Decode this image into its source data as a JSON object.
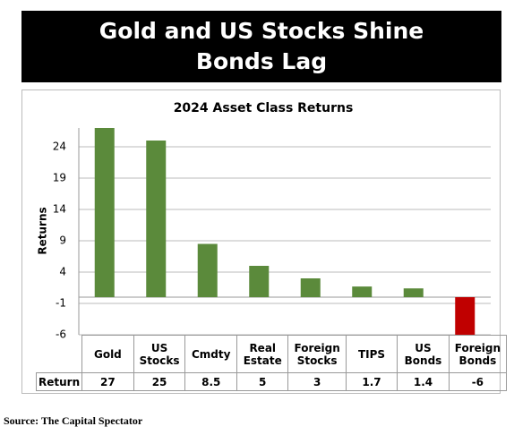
{
  "header": {
    "title_lines": [
      "Gold and US Stocks Shine",
      "Bonds Lag"
    ]
  },
  "chart_data": {
    "type": "bar",
    "title": "2024 Asset Class Returns",
    "y_label": "Returns",
    "categories": [
      "Gold",
      "US Stocks",
      "Cmdty",
      "Real Estate",
      "Foreign Stocks",
      "TIPS",
      "US Bonds",
      "Foreign Bonds"
    ],
    "series": [
      {
        "name": "Return",
        "color": "#5b8a3b",
        "negative_color": "#c00000",
        "values": [
          27,
          25,
          8.5,
          5,
          3,
          1.7,
          1.4,
          -6
        ]
      }
    ],
    "ylim": [
      -6,
      27
    ],
    "yticks": [
      -6,
      -1,
      4,
      9,
      14,
      19,
      24
    ],
    "grid": true
  },
  "source": "Source: The Capital Spectator"
}
